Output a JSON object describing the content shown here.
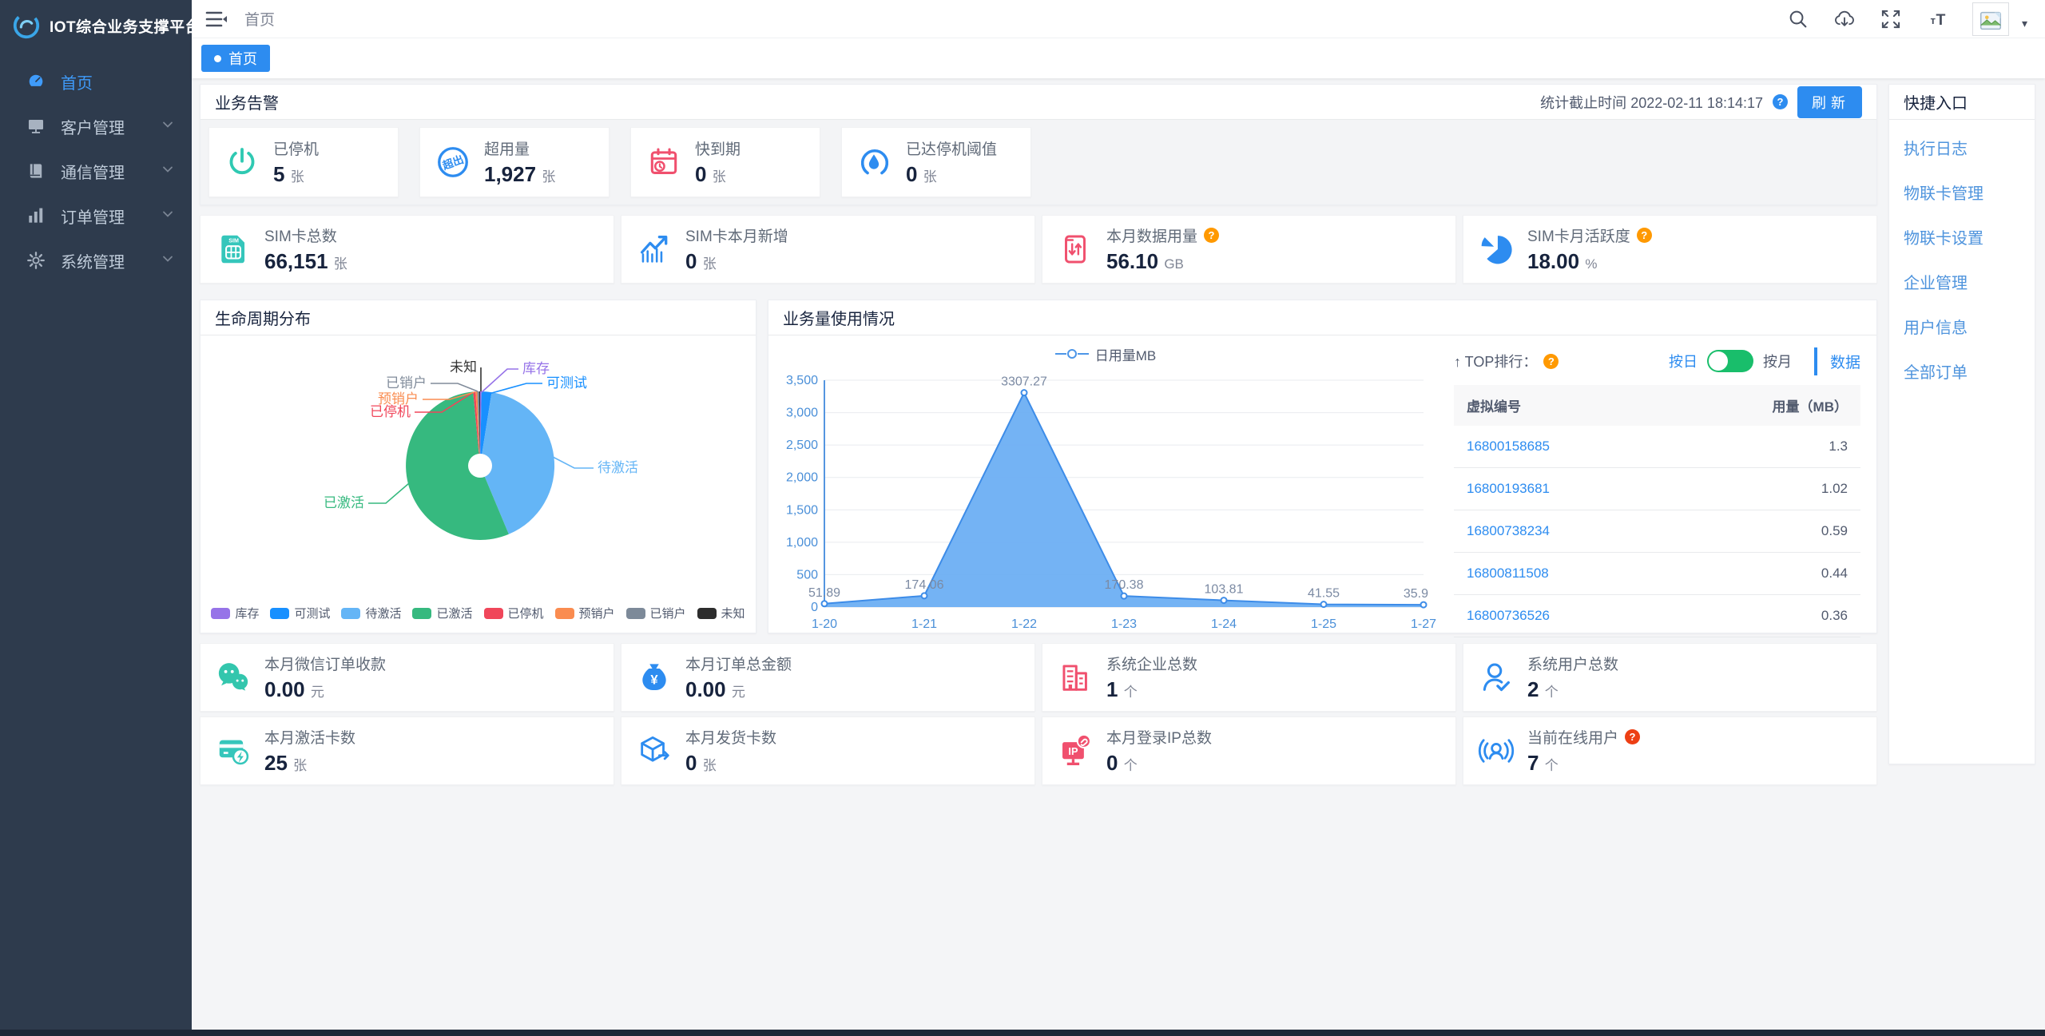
{
  "app": {
    "title": "IOT综合业务支撑平台"
  },
  "sidebar": {
    "items": [
      {
        "label": "首页",
        "icon": "dashboard",
        "active": true,
        "has_children": false
      },
      {
        "label": "客户管理",
        "icon": "customers",
        "active": false,
        "has_children": true
      },
      {
        "label": "通信管理",
        "icon": "communication",
        "active": false,
        "has_children": true
      },
      {
        "label": "订单管理",
        "icon": "orders",
        "active": false,
        "has_children": true
      },
      {
        "label": "系统管理",
        "icon": "settings",
        "active": false,
        "has_children": true
      }
    ]
  },
  "header": {
    "breadcrumb": "首页",
    "icons": [
      "search",
      "cloud-download",
      "fullscreen",
      "font-size"
    ]
  },
  "tabbar": {
    "active_tab": "首页"
  },
  "alerts_panel": {
    "title": "业务告警",
    "stat_time_label": "统计截止时间",
    "stat_time": "2022-02-11 18:14:17",
    "refresh_label": "刷新",
    "cards": [
      {
        "icon": "power",
        "color": "#2fc9b2",
        "label": "已停机",
        "value": "5",
        "unit": "张"
      },
      {
        "icon": "over-quota",
        "color": "#2d8cf0",
        "label": "超用量",
        "value": "1,927",
        "unit": "张"
      },
      {
        "icon": "expiring",
        "color": "#f0506e",
        "label": "快到期",
        "value": "0",
        "unit": "张"
      },
      {
        "icon": "threshold",
        "color": "#2d8cf0",
        "label": "已达停机阈值",
        "value": "0",
        "unit": "张"
      }
    ]
  },
  "sim_cards": [
    {
      "icon": "sim-card",
      "color": "#35c6bb",
      "label": "SIM卡总数",
      "value": "66,151",
      "unit": "张"
    },
    {
      "icon": "trend-up",
      "color": "#2d8cf0",
      "label": "SIM卡本月新增",
      "value": "0",
      "unit": "张"
    },
    {
      "icon": "data-usage",
      "color": "#f0506e",
      "label": "本月数据用量",
      "value": "56.10",
      "unit": "GB",
      "help": "orange"
    },
    {
      "icon": "pie-activity",
      "color": "#2d8cf0",
      "label": "SIM卡月活跃度",
      "value": "18.00",
      "unit": "%",
      "help": "orange"
    }
  ],
  "bottom_cards_row1": [
    {
      "icon": "wechat",
      "color": "#33c6ad",
      "label": "本月微信订单收款",
      "value": "0.00",
      "unit": "元"
    },
    {
      "icon": "money-bag",
      "color": "#2d8cf0",
      "label": "本月订单总金额",
      "value": "0.00",
      "unit": "元"
    },
    {
      "icon": "buildings",
      "color": "#f0506e",
      "label": "系统企业总数",
      "value": "1",
      "unit": "个"
    },
    {
      "icon": "user-check",
      "color": "#2d8cf0",
      "label": "系统用户总数",
      "value": "2",
      "unit": "个"
    }
  ],
  "bottom_cards_row2": [
    {
      "icon": "card-activate",
      "color": "#35c6bb",
      "label": "本月激活卡数",
      "value": "25",
      "unit": "张"
    },
    {
      "icon": "shipping-box",
      "color": "#2d8cf0",
      "label": "本月发货卡数",
      "value": "0",
      "unit": "张"
    },
    {
      "icon": "ip-monitor",
      "color": "#f0506e",
      "label": "本月登录IP总数",
      "value": "0",
      "unit": "个"
    },
    {
      "icon": "online-user",
      "color": "#2d8cf0",
      "label": "当前在线用户",
      "value": "7",
      "unit": "个",
      "help": "red"
    }
  ],
  "lifecycle_panel": {
    "title": "生命周期分布"
  },
  "usage_panel": {
    "title": "业务量使用情况",
    "legend": "日用量MB",
    "top_rank": {
      "title": "↑ TOP排行：",
      "toggle_left": "按日",
      "toggle_right": "按月",
      "data_link": "数据",
      "columns": [
        "虚拟编号",
        "用量（MB）"
      ],
      "rows": [
        {
          "number": "16800158685",
          "usage": "1.3"
        },
        {
          "number": "16800193681",
          "usage": "1.02"
        },
        {
          "number": "16800738234",
          "usage": "0.59"
        },
        {
          "number": "16800811508",
          "usage": "0.44"
        },
        {
          "number": "16800736526",
          "usage": "0.36"
        }
      ]
    }
  },
  "quick_panel": {
    "title": "快捷入口",
    "links": [
      "执行日志",
      "物联卡管理",
      "物联卡设置",
      "企业管理",
      "用户信息",
      "全部订单"
    ]
  },
  "chart_data": [
    {
      "type": "pie",
      "title": "生命周期分布",
      "labels": [
        "库存",
        "可测试",
        "待激活",
        "已激活",
        "已停机",
        "预销户",
        "已销户",
        "未知"
      ],
      "values": [
        0.3,
        2.2,
        41.2,
        54.8,
        0.5,
        0.4,
        0.4,
        0.2
      ],
      "values_unit": "percent_estimated_from_pixels",
      "colors": [
        "#9673e8",
        "#1890ff",
        "#64b5f6",
        "#36b97f",
        "#f0465a",
        "#fa8c50",
        "#7d8a99",
        "#2d2d2d"
      ],
      "legend_position": "bottom",
      "donut_hole": "small"
    },
    {
      "type": "area",
      "title": "业务量使用情况",
      "x": [
        "1-20",
        "1-21",
        "1-22",
        "1-23",
        "1-24",
        "1-25",
        "1-27"
      ],
      "series": [
        {
          "name": "日用量MB",
          "values": [
            51.89,
            174.06,
            3307.27,
            170.38,
            103.81,
            41.55,
            35.9
          ]
        }
      ],
      "point_labels": [
        "51.89",
        "174.06",
        "3307.27",
        "170.38",
        "103.81",
        "41.55",
        "35.9"
      ],
      "ylim": [
        0,
        3500
      ],
      "ytick_step": 500,
      "ytick_labels": [
        "0",
        "500",
        "1,000",
        "1,500",
        "2,000",
        "2,500",
        "3,000",
        "3,500"
      ],
      "grid": true,
      "legend_position": "top"
    }
  ]
}
